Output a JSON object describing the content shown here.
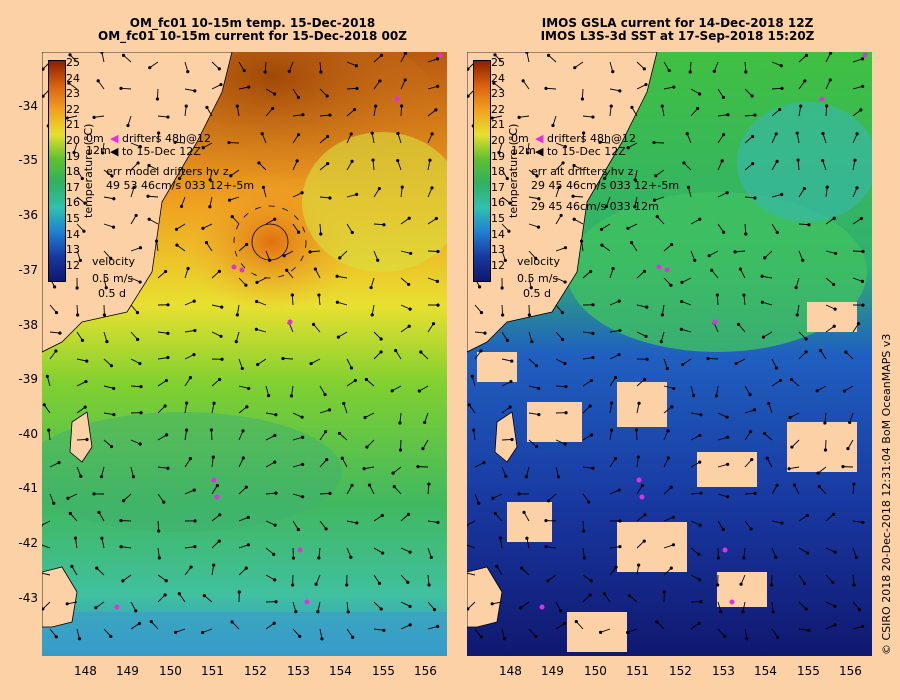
{
  "titles": {
    "left_line1": "OM_fc01 10-15m temp. 15-Dec-2018",
    "left_line2": "OM_fc01 10-15m current for 15-Dec-2018 00Z",
    "right_line1": "IMOS GSLA current for 14-Dec-2018 12Z",
    "right_line2": "IMOS L3S-3d SST at 17-Sep-2018 15:20Z"
  },
  "axes": {
    "lat_ticks": [
      "-34",
      "-35",
      "-36",
      "-37",
      "-38",
      "-39",
      "-40",
      "-41",
      "-42",
      "-43"
    ],
    "lon_ticks": [
      "148",
      "149",
      "150",
      "151",
      "152",
      "153",
      "154",
      "155",
      "156"
    ]
  },
  "colorbar": {
    "title": "temperature (°C)",
    "ticks": [
      "25",
      "24",
      "23",
      "22",
      "21",
      "20",
      "19",
      "18",
      "17",
      "16",
      "15",
      "14",
      "13",
      "12"
    ]
  },
  "legend_left": {
    "drifters": "drifters 48h@12",
    "to_line": "to 15-Dec 12Z",
    "depth_a": "0m",
    "depth_b": "12m",
    "err_title": "err model drifters hv z",
    "err_values": "49 53 46cm/s 033 12+-5m",
    "velocity_title": "velocity",
    "velocity_scale": "0.5 m/s",
    "velocity_days": "0.5 d"
  },
  "legend_right": {
    "drifters": "drifters 48h@12",
    "to_line": "to 15-Dec 12Z",
    "depth_a": "0m",
    "depth_b": "12m",
    "err_title": "err alt drifters hv z",
    "err_values": "29 45 46cm/s 033 12+-5m",
    "err_values2": "29 45 46cm/s 033 12m",
    "velocity_title": "velocity",
    "velocity_scale": "0.5 m/s",
    "velocity_days": "0.5 d"
  },
  "credit": "© CSIRO 2018   20-Dec-2018 12:31:04 BoM OceanMAPS v3",
  "colors": {
    "land": "#fcd1a6",
    "drifter": "#e030e0"
  }
}
